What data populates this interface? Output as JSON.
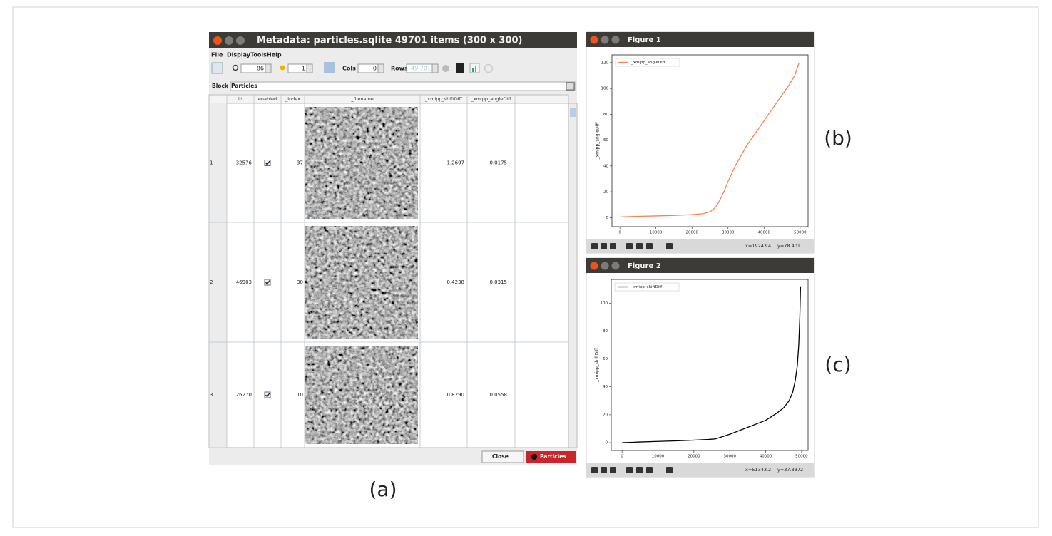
{
  "metadata_window": {
    "title": "Metadata: particles.sqlite 49701 items (300 x 300)",
    "menu": [
      "File",
      "Display",
      "Tools",
      "Help"
    ],
    "toolbar": {
      "zoom": "86",
      "depth": "1",
      "cols_label": "Cols",
      "cols": "0",
      "rows_label": "Rows",
      "rows": "49,701"
    },
    "block_label": "Block",
    "block": "Particles",
    "columns": [
      "id",
      "enabled",
      "_index",
      "_filename",
      "_xmipp_shiftDiff",
      "_xmipp_angleDiff"
    ],
    "rows": [
      {
        "row": "1",
        "id": "32576",
        "enabled": true,
        "index": "37",
        "shift": "1.2697",
        "angle": "0.0175"
      },
      {
        "row": "2",
        "id": "46903",
        "enabled": true,
        "index": "30",
        "shift": "0.4238",
        "angle": "0.0315"
      },
      {
        "row": "3",
        "id": "26270",
        "enabled": true,
        "index": "10",
        "shift": "0.8290",
        "angle": "0.0558"
      }
    ],
    "buttons": [
      "Close",
      "Particles"
    ]
  },
  "figure_windows": [
    {
      "title": "Figure 1",
      "status_x": "x=19243.4",
      "status_y": "y=78.401"
    },
    {
      "title": "Figure 2",
      "status_x": "x=51343.2",
      "status_y": "y=37.3372"
    }
  ],
  "panel_labels": [
    "(a)",
    "(b)",
    "(c)"
  ],
  "chart_data": [
    {
      "type": "line",
      "y_label": "_xmipp_angleDiff",
      "x": [
        0,
        5000,
        10000,
        15000,
        20000,
        23000,
        25000,
        26000,
        27000,
        28000,
        29000,
        30000,
        32000,
        35000,
        38000,
        40000,
        43000,
        45000,
        47000,
        48500,
        49700
      ],
      "series": [
        {
          "name": "_xmipp_angleDiff",
          "color": "#ff7f50",
          "values": [
            0.5,
            1,
            1.3,
            1.7,
            2.3,
            3,
            4.5,
            6.5,
            10,
            15,
            21,
            28,
            40,
            55,
            67,
            75,
            87,
            95,
            103,
            110,
            120
          ]
        }
      ],
      "xlim": [
        -2200,
        52200
      ],
      "xticks": [
        0,
        10000,
        20000,
        30000,
        40000,
        50000
      ],
      "ylim": [
        -7,
        126
      ],
      "yticks": [
        0,
        20,
        40,
        60,
        80,
        100,
        120
      ],
      "legend": "upper left"
    },
    {
      "type": "line",
      "y_label": "_xmipp_shiftDiff",
      "x": [
        0,
        5000,
        10000,
        15000,
        20000,
        24000,
        26000,
        30000,
        35000,
        40000,
        43000,
        45000,
        46500,
        47500,
        48200,
        48800,
        49200,
        49500,
        49700
      ],
      "series": [
        {
          "name": "_xmipp_shiftDiff",
          "color": "#000000",
          "values": [
            0,
            0.5,
            0.9,
            1.3,
            1.8,
            2.3,
            2.7,
            6,
            11,
            16,
            21,
            25,
            30,
            36,
            44,
            55,
            70,
            90,
            112
          ]
        }
      ],
      "xlim": [
        -3000,
        51800
      ],
      "xticks": [
        0,
        10000,
        20000,
        30000,
        40000,
        50000
      ],
      "ylim": [
        -5.6,
        117
      ],
      "yticks": [
        0,
        20,
        40,
        60,
        80,
        100
      ],
      "legend": "upper left"
    }
  ]
}
